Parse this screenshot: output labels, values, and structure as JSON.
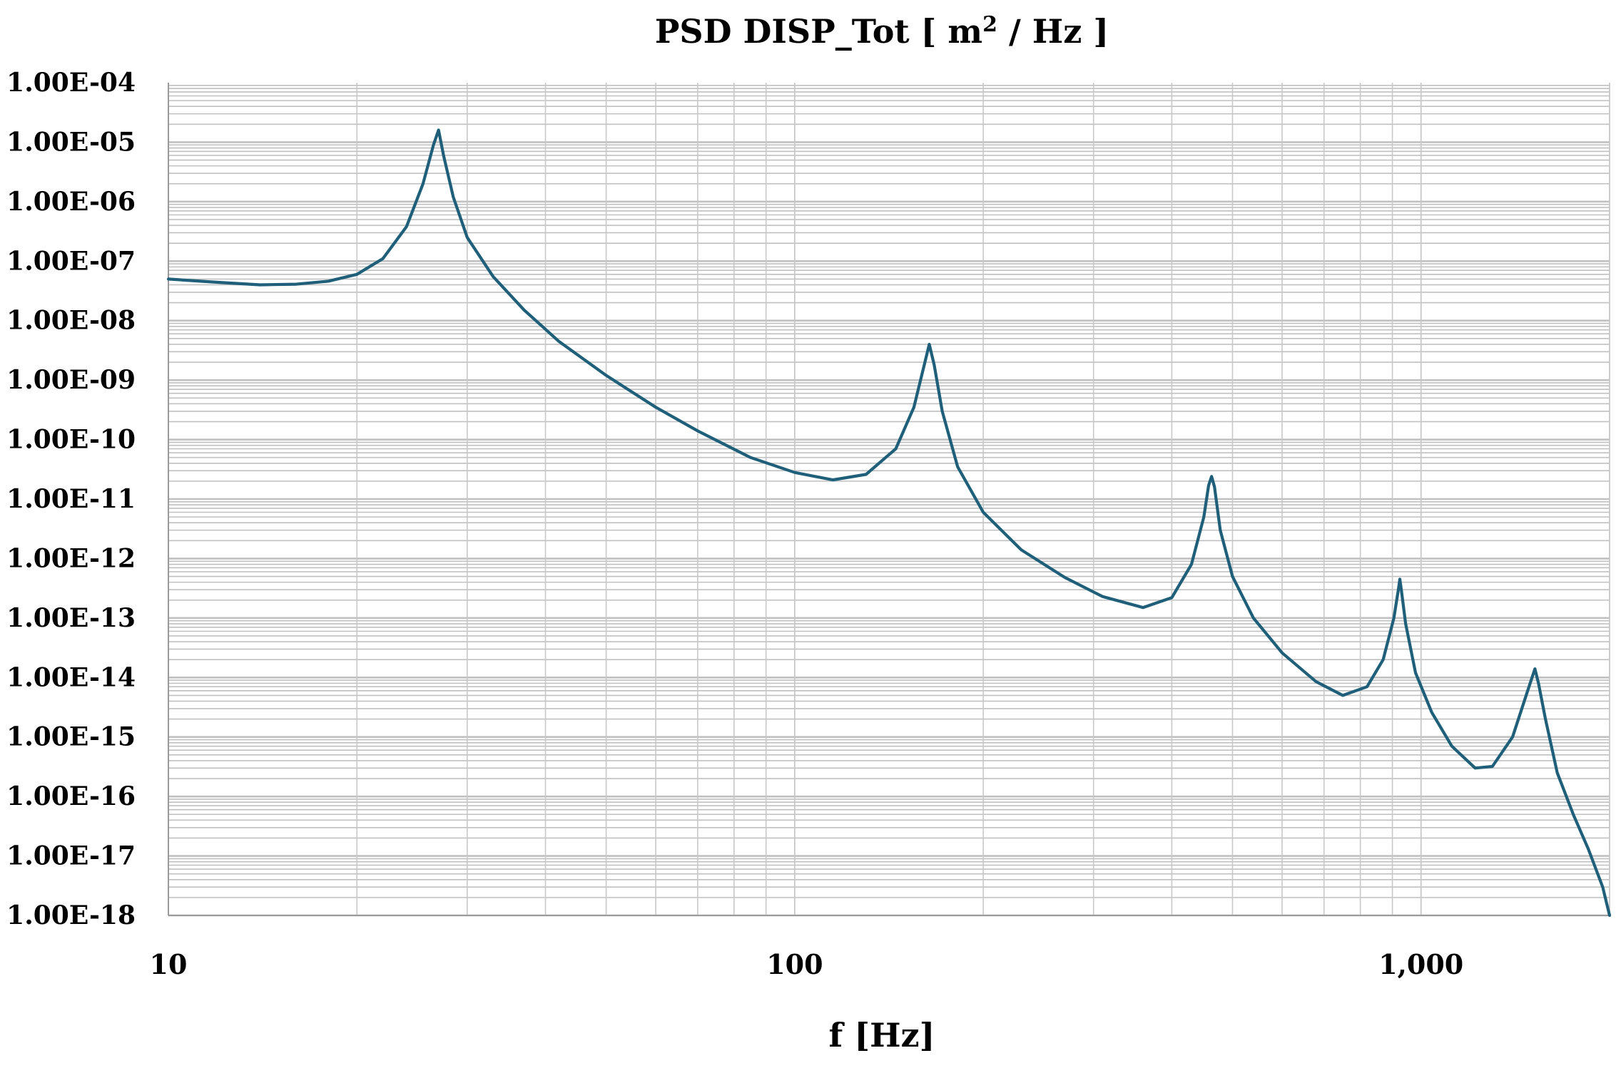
{
  "chart_data": {
    "type": "line",
    "title_main": "PSD DISP_Tot [ m",
    "title_sup": "2",
    "title_end": " / Hz ]",
    "xlabel": "f  [Hz]",
    "ylabel": "",
    "x_scale": "log",
    "y_scale": "log",
    "xlim": [
      10,
      2000
    ],
    "ylim": [
      1e-18,
      0.0001
    ],
    "grid": true,
    "legend": "none",
    "x_ticks": [
      {
        "value": 10,
        "label": "10"
      },
      {
        "value": 100,
        "label": "100"
      },
      {
        "value": 1000,
        "label": "1,000"
      }
    ],
    "y_ticks": [
      {
        "value": 0.0001,
        "label": "1.00E-04"
      },
      {
        "value": 1e-05,
        "label": "1.00E-05"
      },
      {
        "value": 1e-06,
        "label": "1.00E-06"
      },
      {
        "value": 1e-07,
        "label": "1.00E-07"
      },
      {
        "value": 1e-08,
        "label": "1.00E-08"
      },
      {
        "value": 1e-09,
        "label": "1.00E-09"
      },
      {
        "value": 1e-10,
        "label": "1.00E-10"
      },
      {
        "value": 1e-11,
        "label": "1.00E-11"
      },
      {
        "value": 1e-12,
        "label": "1.00E-12"
      },
      {
        "value": 1e-13,
        "label": "1.00E-13"
      },
      {
        "value": 1e-14,
        "label": "1.00E-14"
      },
      {
        "value": 1e-15,
        "label": "1.00E-15"
      },
      {
        "value": 1e-16,
        "label": "1.00E-16"
      },
      {
        "value": 1e-17,
        "label": "1.00E-17"
      },
      {
        "value": 1e-18,
        "label": "1.00E-18"
      }
    ],
    "series": [
      {
        "color": "#1f5f7a",
        "points": [
          [
            10,
            5e-08
          ],
          [
            12,
            4.4e-08
          ],
          [
            14,
            4e-08
          ],
          [
            16,
            4.1e-08
          ],
          [
            18,
            4.6e-08
          ],
          [
            20,
            6e-08
          ],
          [
            22,
            1.1e-07
          ],
          [
            24,
            3.8e-07
          ],
          [
            25.5,
            2e-06
          ],
          [
            26.5,
            9e-06
          ],
          [
            27,
            1.6e-05
          ],
          [
            27.5,
            6e-06
          ],
          [
            28.5,
            1.2e-06
          ],
          [
            30,
            2.5e-07
          ],
          [
            33,
            5.5e-08
          ],
          [
            37,
            1.5e-08
          ],
          [
            42,
            4.5e-09
          ],
          [
            50,
            1.2e-09
          ],
          [
            60,
            3.5e-10
          ],
          [
            70,
            1.4e-10
          ],
          [
            85,
            5e-11
          ],
          [
            100,
            2.8e-11
          ],
          [
            115,
            2.1e-11
          ],
          [
            130,
            2.6e-11
          ],
          [
            145,
            7e-11
          ],
          [
            155,
            3.5e-10
          ],
          [
            161,
            1.8e-09
          ],
          [
            164,
            4e-09
          ],
          [
            167,
            1.8e-09
          ],
          [
            172,
            3e-10
          ],
          [
            182,
            3.5e-11
          ],
          [
            200,
            6e-12
          ],
          [
            230,
            1.4e-12
          ],
          [
            270,
            4.8e-13
          ],
          [
            310,
            2.3e-13
          ],
          [
            360,
            1.5e-13
          ],
          [
            400,
            2.2e-13
          ],
          [
            430,
            8e-13
          ],
          [
            450,
            5e-12
          ],
          [
            458,
            1.7e-11
          ],
          [
            463,
            2.4e-11
          ],
          [
            468,
            1.6e-11
          ],
          [
            478,
            3e-12
          ],
          [
            500,
            5e-13
          ],
          [
            540,
            1e-13
          ],
          [
            600,
            2.6e-14
          ],
          [
            680,
            8.5e-15
          ],
          [
            750,
            5e-15
          ],
          [
            820,
            7e-15
          ],
          [
            870,
            2e-14
          ],
          [
            905,
            1e-13
          ],
          [
            920,
            3e-13
          ],
          [
            925,
            4.5e-13
          ],
          [
            930,
            3e-13
          ],
          [
            945,
            8e-14
          ],
          [
            980,
            1.2e-14
          ],
          [
            1040,
            2.6e-15
          ],
          [
            1120,
            7e-16
          ],
          [
            1220,
            3e-16
          ],
          [
            1300,
            3.2e-16
          ],
          [
            1400,
            1e-15
          ],
          [
            1480,
            6e-15
          ],
          [
            1520,
            1.4e-14
          ],
          [
            1540,
            8e-15
          ],
          [
            1580,
            2e-15
          ],
          [
            1650,
            2.5e-16
          ],
          [
            1750,
            5e-17
          ],
          [
            1850,
            1.3e-17
          ],
          [
            1950,
            3e-18
          ],
          [
            2000,
            1e-18
          ]
        ]
      }
    ]
  }
}
